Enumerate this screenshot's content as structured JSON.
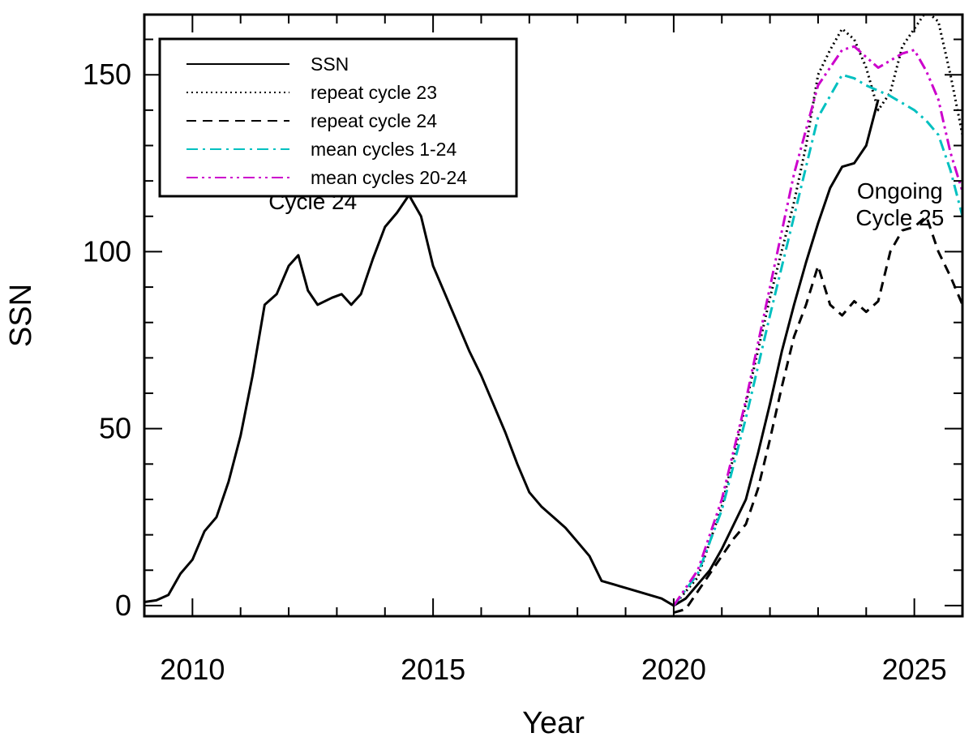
{
  "chart_data": {
    "type": "line",
    "title": "",
    "xlabel": "Year",
    "ylabel": "SSN",
    "xlim": [
      2009.0,
      2026.0
    ],
    "ylim": [
      -3,
      167
    ],
    "xticks": [
      2010,
      2015,
      2020,
      2025
    ],
    "yticks": [
      0,
      50,
      100,
      150
    ],
    "grid": false,
    "legend_position": "top-left",
    "annotations": [
      {
        "id": "cycle24",
        "lines": [
          "Cycle 24"
        ],
        "x": 2012.5,
        "y": 112
      },
      {
        "id": "cycle25",
        "lines": [
          "Ongoing",
          "Cycle 25"
        ],
        "x": 2024.7,
        "y": 115
      }
    ],
    "series": [
      {
        "name": "SSN",
        "color": "#000000",
        "dash": "solid",
        "points": [
          [
            2009.0,
            1
          ],
          [
            2009.25,
            1.5
          ],
          [
            2009.5,
            3
          ],
          [
            2009.75,
            9
          ],
          [
            2010.0,
            13
          ],
          [
            2010.25,
            21
          ],
          [
            2010.5,
            25
          ],
          [
            2010.75,
            35
          ],
          [
            2011.0,
            48
          ],
          [
            2011.25,
            65
          ],
          [
            2011.5,
            85
          ],
          [
            2011.75,
            88
          ],
          [
            2012.0,
            96
          ],
          [
            2012.2,
            99
          ],
          [
            2012.4,
            89
          ],
          [
            2012.6,
            85
          ],
          [
            2012.9,
            87
          ],
          [
            2013.1,
            88
          ],
          [
            2013.3,
            85
          ],
          [
            2013.5,
            88
          ],
          [
            2013.75,
            98
          ],
          [
            2014.0,
            107
          ],
          [
            2014.25,
            111
          ],
          [
            2014.5,
            116
          ],
          [
            2014.75,
            110
          ],
          [
            2015.0,
            96
          ],
          [
            2015.25,
            88
          ],
          [
            2015.5,
            80
          ],
          [
            2015.75,
            72
          ],
          [
            2016.0,
            65
          ],
          [
            2016.25,
            57
          ],
          [
            2016.5,
            49
          ],
          [
            2016.75,
            40
          ],
          [
            2017.0,
            32
          ],
          [
            2017.25,
            28
          ],
          [
            2017.5,
            25
          ],
          [
            2017.75,
            22
          ],
          [
            2018.0,
            18
          ],
          [
            2018.25,
            14
          ],
          [
            2018.5,
            7
          ],
          [
            2018.75,
            6
          ],
          [
            2019.0,
            5
          ],
          [
            2019.25,
            4
          ],
          [
            2019.5,
            3
          ],
          [
            2019.75,
            2
          ],
          [
            2020.0,
            0
          ],
          [
            2020.25,
            2
          ],
          [
            2020.5,
            6
          ],
          [
            2020.75,
            10
          ],
          [
            2021.0,
            16
          ],
          [
            2021.25,
            23
          ],
          [
            2021.5,
            30
          ],
          [
            2021.75,
            43
          ],
          [
            2022.0,
            57
          ],
          [
            2022.25,
            72
          ],
          [
            2022.5,
            85
          ],
          [
            2022.75,
            97
          ],
          [
            2023.0,
            108
          ],
          [
            2023.25,
            118
          ],
          [
            2023.5,
            124
          ],
          [
            2023.75,
            125
          ],
          [
            2024.0,
            130
          ],
          [
            2024.25,
            143
          ]
        ]
      },
      {
        "name": "repeat cycle 23",
        "color": "#000000",
        "dash": "dotted",
        "points": [
          [
            2020.0,
            0
          ],
          [
            2020.5,
            8
          ],
          [
            2021.0,
            28
          ],
          [
            2021.5,
            57
          ],
          [
            2022.0,
            87
          ],
          [
            2022.5,
            114
          ],
          [
            2022.75,
            130
          ],
          [
            2023.0,
            150
          ],
          [
            2023.25,
            157
          ],
          [
            2023.5,
            163
          ],
          [
            2023.75,
            160
          ],
          [
            2024.0,
            152
          ],
          [
            2024.25,
            140
          ],
          [
            2024.5,
            145
          ],
          [
            2024.75,
            158
          ],
          [
            2025.0,
            163
          ],
          [
            2025.25,
            168
          ],
          [
            2025.5,
            165
          ],
          [
            2025.75,
            150
          ],
          [
            2026.0,
            133
          ]
        ]
      },
      {
        "name": "repeat cycle 24",
        "color": "#000000",
        "dash": "dashed",
        "points": [
          [
            2020.0,
            -2
          ],
          [
            2020.25,
            -1
          ],
          [
            2020.5,
            4
          ],
          [
            2020.75,
            9
          ],
          [
            2021.0,
            14
          ],
          [
            2021.25,
            19
          ],
          [
            2021.5,
            23
          ],
          [
            2021.75,
            33
          ],
          [
            2022.0,
            47
          ],
          [
            2022.25,
            62
          ],
          [
            2022.5,
            76
          ],
          [
            2022.75,
            85
          ],
          [
            2023.0,
            96
          ],
          [
            2023.25,
            85
          ],
          [
            2023.5,
            82
          ],
          [
            2023.75,
            86
          ],
          [
            2024.0,
            83
          ],
          [
            2024.25,
            86
          ],
          [
            2024.5,
            100
          ],
          [
            2024.75,
            106
          ],
          [
            2025.0,
            107
          ],
          [
            2025.25,
            110
          ],
          [
            2025.5,
            100
          ],
          [
            2025.75,
            93
          ],
          [
            2026.0,
            85
          ]
        ]
      },
      {
        "name": "mean cycles 1-24",
        "color": "#00c0c0",
        "dash": "dashdot",
        "points": [
          [
            2020.0,
            0
          ],
          [
            2020.5,
            9
          ],
          [
            2021.0,
            27
          ],
          [
            2021.5,
            53
          ],
          [
            2022.0,
            82
          ],
          [
            2022.5,
            110
          ],
          [
            2023.0,
            138
          ],
          [
            2023.5,
            150
          ],
          [
            2023.75,
            149
          ],
          [
            2024.0,
            147
          ],
          [
            2024.5,
            144
          ],
          [
            2025.0,
            140
          ],
          [
            2025.25,
            137
          ],
          [
            2025.5,
            133
          ],
          [
            2025.75,
            123
          ],
          [
            2026.0,
            110
          ]
        ]
      },
      {
        "name": "mean cycles 20-24",
        "color": "#cc00cc",
        "dash": "dashdotdot",
        "points": [
          [
            2020.0,
            0
          ],
          [
            2020.5,
            10
          ],
          [
            2021.0,
            30
          ],
          [
            2021.5,
            58
          ],
          [
            2022.0,
            90
          ],
          [
            2022.5,
            122
          ],
          [
            2023.0,
            147
          ],
          [
            2023.5,
            157
          ],
          [
            2023.75,
            158
          ],
          [
            2024.0,
            155
          ],
          [
            2024.25,
            152
          ],
          [
            2024.5,
            154
          ],
          [
            2024.75,
            156
          ],
          [
            2025.0,
            157
          ],
          [
            2025.25,
            151
          ],
          [
            2025.5,
            143
          ],
          [
            2025.75,
            128
          ],
          [
            2026.0,
            117
          ]
        ]
      }
    ]
  }
}
